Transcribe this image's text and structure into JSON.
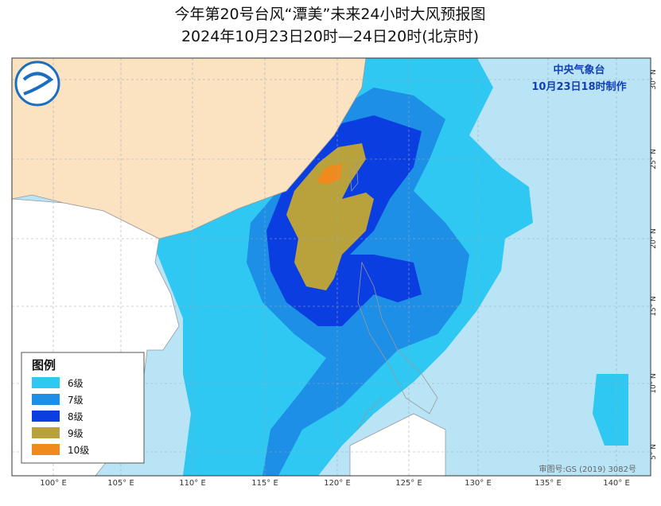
{
  "header": {
    "title": "今年第20号台风“潭美”未来24小时大风预报图",
    "subtitle": "2024年10月23日20时—24日20时(北京时)"
  },
  "agency": {
    "name": "中央气象台",
    "issued": "10月23日18时制作"
  },
  "legend": {
    "title": "图例",
    "items": [
      {
        "label": "6级",
        "color": "#2fc8f2"
      },
      {
        "label": "7级",
        "color": "#1e8fe6"
      },
      {
        "label": "8级",
        "color": "#0b3ee0"
      },
      {
        "label": "9级",
        "color": "#b9a23c"
      },
      {
        "label": "10级",
        "color": "#f08a1c"
      }
    ]
  },
  "lon_labels": [
    "100° E",
    "105° E",
    "110° E",
    "115° E",
    "120° E",
    "125° E",
    "130° E",
    "135° E",
    "140° E"
  ],
  "lat_labels": [
    "30° N",
    "25° N",
    "20° N",
    "15° N",
    "10° N",
    "5° N"
  ],
  "approval": "审图号:GS (2019) 3082号"
}
